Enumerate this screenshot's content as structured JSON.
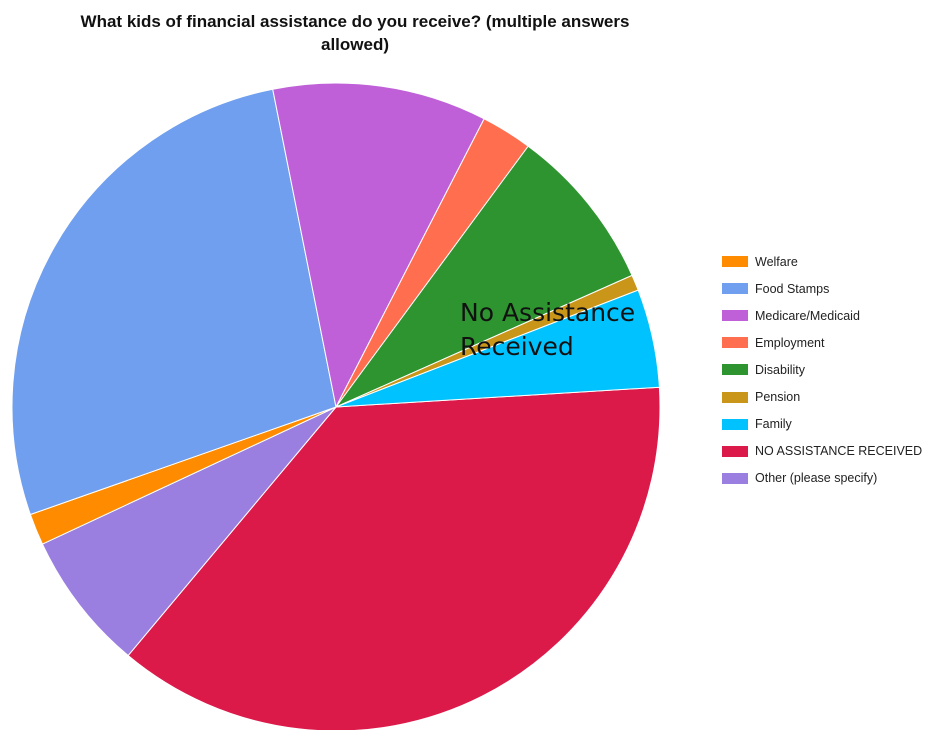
{
  "chart_data": {
    "type": "pie",
    "title": "What kids of financial assistance do you receive?  (multiple answers allowed)",
    "annotation": [
      "No Assistance",
      "Received"
    ],
    "start_angle_deg": -3.5,
    "slices": [
      {
        "label": "NO ASSISTANCE RECEIVED",
        "value": 37.8,
        "color": "#DC1A4A"
      },
      {
        "label": "Other (please specify)",
        "value": 7.1,
        "color": "#9B7FE0"
      },
      {
        "label": "Welfare",
        "value": 1.6,
        "color": "#FF8C00"
      },
      {
        "label": "Food Stamps",
        "value": 27.8,
        "color": "#6F9FEE"
      },
      {
        "label": "Medicare/Medicaid",
        "value": 10.9,
        "color": "#C060D8"
      },
      {
        "label": "Employment",
        "value": 2.6,
        "color": "#FF6F4F"
      },
      {
        "label": "Disability",
        "value": 8.4,
        "color": "#2E9430"
      },
      {
        "label": "Pension",
        "value": 0.8,
        "color": "#C9961A"
      },
      {
        "label": "Family",
        "value": 5.0,
        "color": "#00C2FF"
      }
    ],
    "legend": [
      {
        "label": "Welfare",
        "color": "#FF8C00"
      },
      {
        "label": "Food Stamps",
        "color": "#6F9FEE"
      },
      {
        "label": "Medicare/Medicaid",
        "color": "#C060D8"
      },
      {
        "label": "Employment",
        "color": "#FF6F4F"
      },
      {
        "label": "Disability",
        "color": "#2E9430"
      },
      {
        "label": "Pension",
        "color": "#C9961A"
      },
      {
        "label": "Family",
        "color": "#00C2FF"
      },
      {
        "label": "NO ASSISTANCE RECEIVED",
        "color": "#DC1A4A"
      },
      {
        "label": "Other (please specify)",
        "color": "#9B7FE0"
      }
    ],
    "legend_position": "right"
  }
}
